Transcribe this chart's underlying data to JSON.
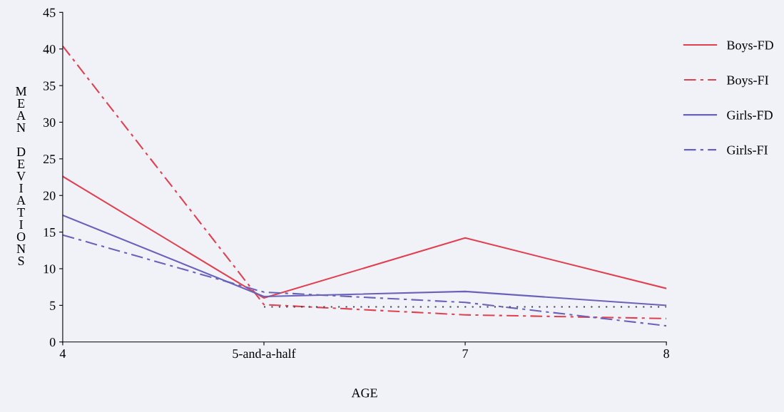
{
  "chart_data": {
    "type": "line",
    "xlabel": "AGE",
    "ylabel": "MEAN DEVIATIONS",
    "categories": [
      "4",
      "5-and-a-half",
      "7",
      "8"
    ],
    "series": [
      {
        "name": "Boys-FD",
        "color": "#e0404f",
        "line_style": "solid",
        "values": [
          22.6,
          6.0,
          14.2,
          7.3
        ]
      },
      {
        "name": "Boys-FI",
        "color": "#e0404f",
        "line_style": "dashed",
        "values": [
          40.4,
          5.1,
          3.7,
          3.2
        ]
      },
      {
        "name": "Girls-FD",
        "color": "#6a62b8",
        "line_style": "solid",
        "values": [
          17.3,
          6.2,
          6.9,
          5.0
        ]
      },
      {
        "name": "Girls-FI",
        "color": "#6a62b8",
        "line_style": "dashed",
        "values": [
          14.6,
          6.8,
          5.4,
          2.2
        ]
      },
      {
        "color": "#404050",
        "line_style": "dotted",
        "values": [
          null,
          4.8,
          4.8,
          4.8
        ]
      }
    ],
    "ylim": [
      0,
      45
    ],
    "yticks": [
      0,
      5,
      10,
      15,
      20,
      25,
      30,
      35,
      40,
      45
    ],
    "grid": false,
    "legend": "right",
    "marker": "none"
  }
}
